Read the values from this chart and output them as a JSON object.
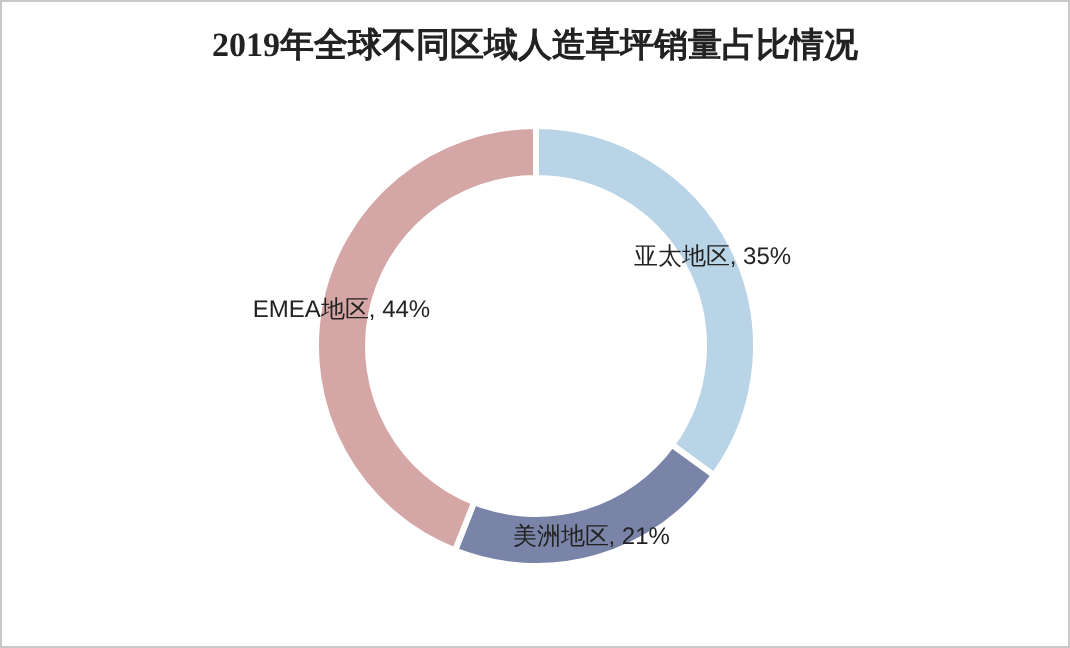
{
  "chart_data": {
    "type": "donut",
    "title": "2019年全球不同区域人造草坪销量占比情况",
    "categories": [
      "亚太地区",
      "美洲地区",
      "EMEA地区"
    ],
    "values": [
      35,
      21,
      44
    ],
    "colors": [
      "#b8d4e6",
      "#7a83a8",
      "#d4a6a5"
    ],
    "value_labels": [
      "35%",
      "21%",
      "44%"
    ]
  }
}
